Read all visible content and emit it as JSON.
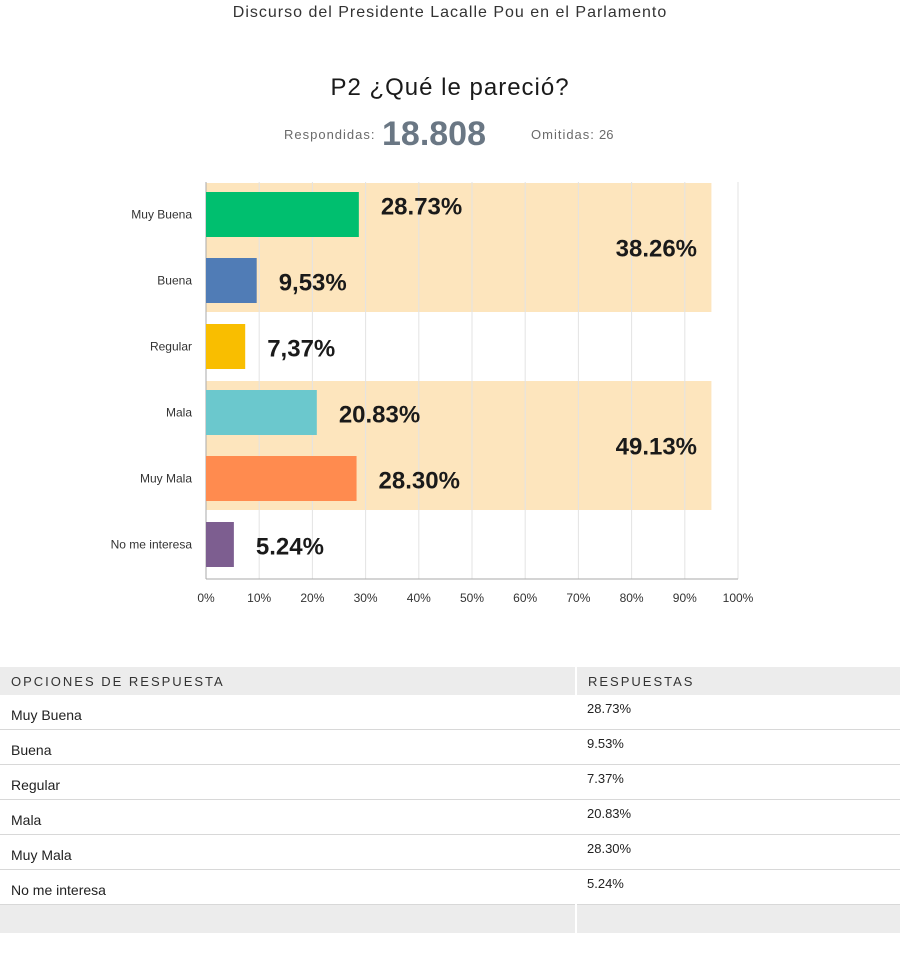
{
  "survey_title": "Discurso del Presidente Lacalle Pou en el Parlamento",
  "question": "P2 ¿Qué le pareció?",
  "stats": {
    "answered_label": "Respondidas:",
    "answered_value": "18.808",
    "skipped_label": "Omitidas:",
    "skipped_value": "26"
  },
  "chart_data": {
    "type": "bar",
    "orientation": "horizontal",
    "categories": [
      "Muy Buena",
      "Buena",
      "Regular",
      "Mala",
      "Muy Mala",
      "No me interesa"
    ],
    "values": [
      28.73,
      9.53,
      7.37,
      20.83,
      28.3,
      5.24
    ],
    "value_labels": [
      "28.73%",
      "9,53%",
      "7,37%",
      "20.83%",
      "28.30%",
      "5.24%"
    ],
    "colors": [
      "#00bf6f",
      "#507cb6",
      "#f9be00",
      "#6bc8cd",
      "#ff8b4f",
      "#7d5e90"
    ],
    "xlim": [
      0,
      100
    ],
    "x_ticks": [
      "0%",
      "10%",
      "20%",
      "30%",
      "40%",
      "50%",
      "60%",
      "70%",
      "80%",
      "90%",
      "100%"
    ],
    "grid": true,
    "group_highlights": [
      {
        "label": "38.26%",
        "value": 38.26,
        "categories": [
          "Muy Buena",
          "Buena"
        ],
        "color": "#fde5bd"
      },
      {
        "label": "49.13%",
        "value": 49.13,
        "categories": [
          "Mala",
          "Muy Mala"
        ],
        "color": "#fde5bd"
      }
    ]
  },
  "table": {
    "headers": [
      "OPCIONES DE RESPUESTA",
      "RESPUESTAS"
    ],
    "rows": [
      {
        "option": "Muy Buena",
        "value": "28.73%"
      },
      {
        "option": "Buena",
        "value": "9.53%"
      },
      {
        "option": "Regular",
        "value": "7.37%"
      },
      {
        "option": "Mala",
        "value": "20.83%"
      },
      {
        "option": "Muy Mala",
        "value": "28.30%"
      },
      {
        "option": "No me interesa",
        "value": "5.24%"
      }
    ]
  }
}
